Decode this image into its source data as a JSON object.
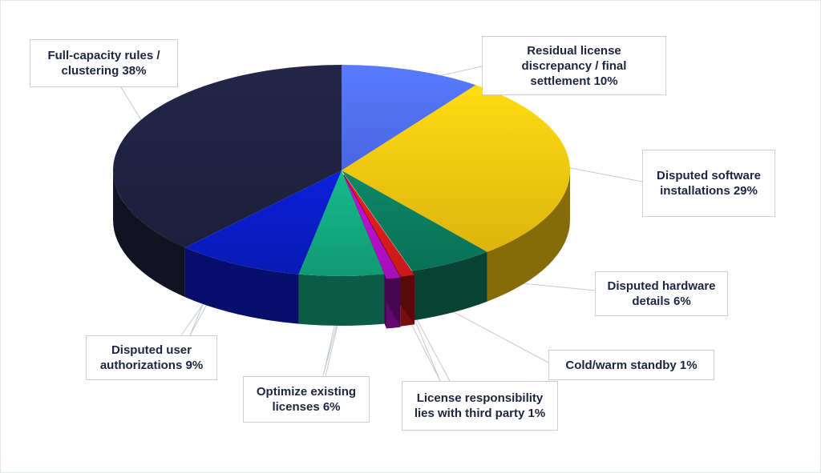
{
  "chart_data": {
    "type": "pie",
    "style": "3d-exploded-pie",
    "title": "",
    "slices": [
      {
        "label": "Residual license discrepancy / final settlement 10%",
        "value": 10,
        "color": "#4f6ef5"
      },
      {
        "label": "Disputed software installations 29%",
        "value": 29,
        "color": "#f1c40f"
      },
      {
        "label": "Disputed hardware details 6%",
        "value": 6,
        "color": "#0b7a5c"
      },
      {
        "label": "Cold/warm standby 1%",
        "value": 1,
        "color": "#d81b1b"
      },
      {
        "label": "License responsibility lies with third party 1%",
        "value": 1,
        "color": "#b30fc9"
      },
      {
        "label": "Optimize existing licenses 6%",
        "value": 6,
        "color": "#12a77d"
      },
      {
        "label": "Disputed user authorizations 9%",
        "value": 9,
        "color": "#0a1dc4"
      },
      {
        "label": "Full-capacity rules / clustering 38%",
        "value": 38,
        "color": "#1f2240"
      }
    ]
  },
  "labels": {
    "residual": "Residual license\ndiscrepancy / final\nsettlement 10%",
    "software": "Disputed software\ninstallations 29%",
    "hardware": "Disputed hardware\ndetails 6%",
    "standby": "Cold/warm standby 1%",
    "thirdparty": "License responsibility\nlies with third party 1%",
    "optimize": "Optimize existing\nlicenses 6%",
    "userauth": "Disputed user\nauthorizations 9%",
    "fullcap": "Full-capacity rules /\nclustering 38%"
  }
}
